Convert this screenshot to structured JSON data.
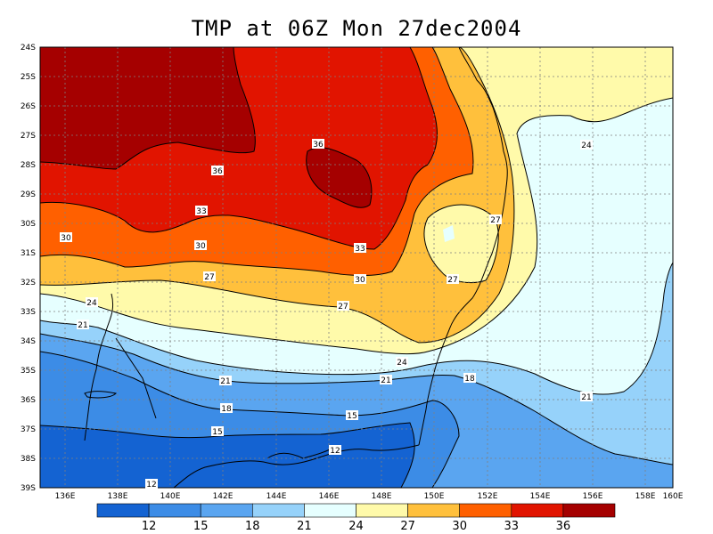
{
  "title": "TMP at 06Z Mon 27dec2004",
  "map": {
    "lat_labels": [
      "24S",
      "25S",
      "26S",
      "27S",
      "28S",
      "29S",
      "30S",
      "31S",
      "32S",
      "33S",
      "34S",
      "35S",
      "36S",
      "37S",
      "38S",
      "39S"
    ],
    "lon_labels": [
      "136E",
      "138E",
      "140E",
      "142E",
      "144E",
      "146E",
      "148E",
      "150E",
      "152E",
      "154E",
      "156E",
      "158E",
      "160E"
    ],
    "contour_labels": [
      {
        "id": "c36a",
        "text": "36"
      },
      {
        "id": "c36b",
        "text": "36"
      },
      {
        "id": "c33a",
        "text": "33"
      },
      {
        "id": "c33b",
        "text": "33"
      },
      {
        "id": "c30a",
        "text": "30"
      },
      {
        "id": "c30b",
        "text": "30"
      },
      {
        "id": "c30c",
        "text": "30"
      },
      {
        "id": "c27a",
        "text": "27"
      },
      {
        "id": "c27b",
        "text": "27"
      },
      {
        "id": "c27c",
        "text": "27"
      },
      {
        "id": "c27d",
        "text": "27"
      },
      {
        "id": "c24a",
        "text": "24"
      },
      {
        "id": "c24b",
        "text": "24"
      },
      {
        "id": "c24c",
        "text": "24"
      },
      {
        "id": "c21a",
        "text": "21"
      },
      {
        "id": "c21b",
        "text": "21"
      },
      {
        "id": "c21c",
        "text": "21"
      },
      {
        "id": "c21d",
        "text": "21"
      },
      {
        "id": "c18a",
        "text": "18"
      },
      {
        "id": "c18b",
        "text": "18"
      },
      {
        "id": "c15a",
        "text": "15"
      },
      {
        "id": "c15b",
        "text": "15"
      },
      {
        "id": "c12a",
        "text": "12"
      },
      {
        "id": "c12b",
        "text": "12"
      }
    ]
  },
  "colorbar": {
    "labels": [
      "12",
      "15",
      "18",
      "21",
      "24",
      "27",
      "30",
      "33",
      "36"
    ],
    "colors": [
      "#1463d2",
      "#3c8ce6",
      "#5aa5f0",
      "#96d2fa",
      "#e6ffff",
      "#fffaaa",
      "#ffc03c",
      "#ff6000",
      "#e11400",
      "#a50000"
    ]
  },
  "colors": {
    "t_lt12": "#1463d2",
    "t_12_15": "#3c8ce6",
    "t_15_18": "#5aa5f0",
    "t_18_21": "#96d2fa",
    "t_21_24": "#e6ffff",
    "t_24_27": "#fffaaa",
    "t_27_30": "#ffc03c",
    "t_30_33": "#ff6000",
    "t_33_36": "#e11400",
    "t_gt36": "#a50000"
  }
}
